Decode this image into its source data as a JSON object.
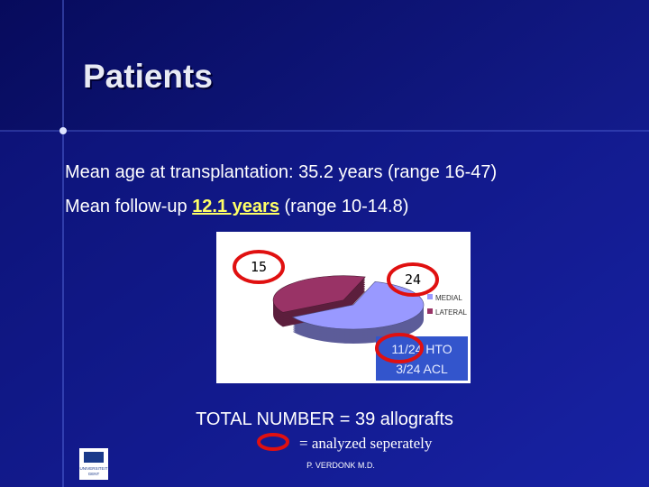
{
  "title": "Patients",
  "bullets": [
    "Mean age at transplantation: 35.2 years (range 16-47)",
    [
      "Mean follow-up ",
      "12.1 years",
      " (range 10-14.8)"
    ]
  ],
  "chart_data": {
    "type": "pie",
    "categories": [
      "MEDIAL",
      "LATERAL"
    ],
    "values": [
      24,
      15
    ],
    "colors": [
      "#9999ff",
      "#993366"
    ]
  },
  "box_lines": [
    "11/24 HTO",
    "3/24 ACL"
  ],
  "total": "TOTAL NUMBER = 39 allografts",
  "legend_note": "= analyzed seperately",
  "footer": "P. VERDONK M.D.",
  "logo": [
    "UNIVERSITEIT",
    "GENT"
  ]
}
